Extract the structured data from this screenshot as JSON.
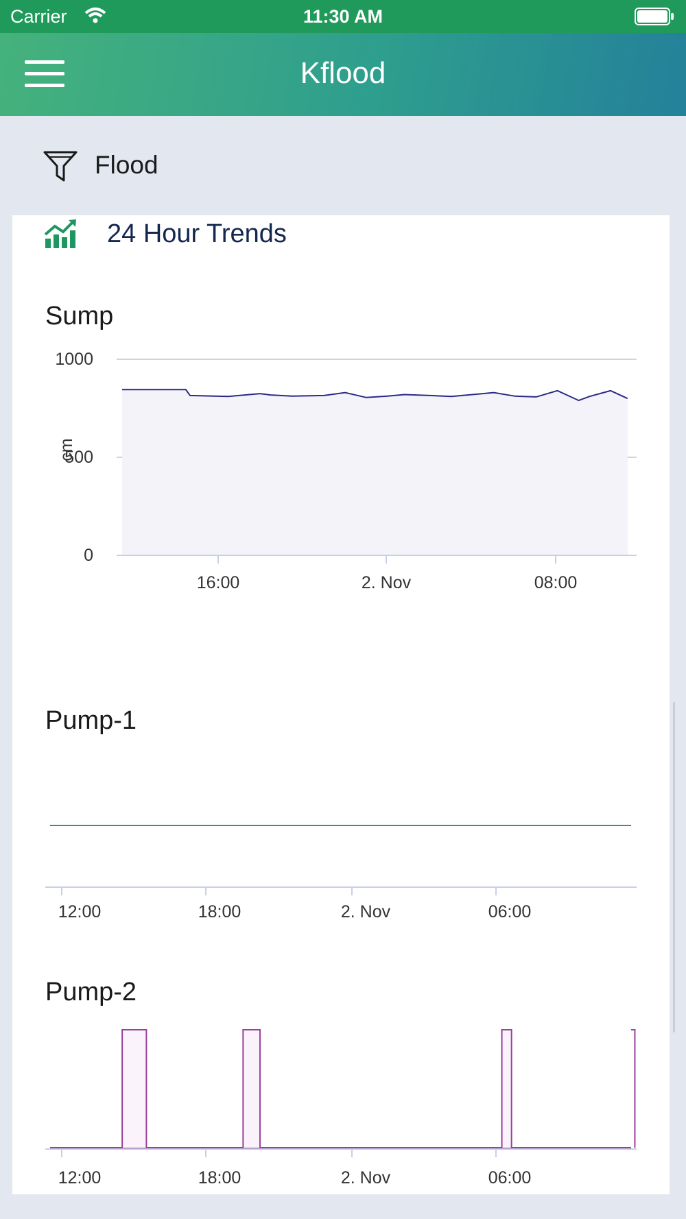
{
  "status_bar": {
    "carrier": "Carrier",
    "time": "11:30 AM"
  },
  "header": {
    "title": "Kflood"
  },
  "filter": {
    "label": "Flood"
  },
  "trends": {
    "title": "24 Hour Trends"
  },
  "colors": {
    "header_start": "#45b27c",
    "header_end": "#24819a",
    "sump_line": "#2b2a86",
    "pump1_line": "#1a9a9a",
    "pump2_line": "#9b3f9b",
    "icon_green": "#1e9660"
  },
  "chart_data": [
    {
      "type": "area",
      "title": "Sump",
      "ylabel": "cm",
      "xlabel": "",
      "ylim": [
        0,
        1000
      ],
      "yticks": [
        "0",
        "500",
        "1000"
      ],
      "xticks": [
        "16:00",
        "2. Nov",
        "08:00"
      ],
      "x_hours": [
        0,
        3,
        3.2,
        5,
        6.5,
        7,
        8,
        9.5,
        10.5,
        11.5,
        12.5,
        13.3,
        14.5,
        15.5,
        16.5,
        17.5,
        18.5,
        19.5,
        20.5,
        21.5,
        22,
        23,
        23.8
      ],
      "series": [
        {
          "values": [
            845,
            845,
            815,
            810,
            825,
            818,
            812,
            815,
            830,
            805,
            812,
            820,
            815,
            810,
            820,
            830,
            812,
            808,
            840,
            790,
            810,
            840,
            800
          ]
        }
      ],
      "grid": true
    },
    {
      "type": "line",
      "title": "Pump-1",
      "xticks": [
        "12:00",
        "18:00",
        "2. Nov",
        "06:00"
      ],
      "series": [
        {
          "values": [
            0,
            0
          ]
        }
      ]
    },
    {
      "type": "area",
      "title": "Pump-2",
      "xticks": [
        "12:00",
        "18:00",
        "2. Nov",
        "06:00"
      ],
      "on_periods_hours": [
        [
          2.5,
          3.5
        ],
        [
          7.5,
          8.2
        ],
        [
          18.2,
          18.6
        ],
        [
          23.7,
          24.4
        ]
      ],
      "series": [
        {
          "values": [
            0,
            1
          ]
        }
      ]
    }
  ]
}
